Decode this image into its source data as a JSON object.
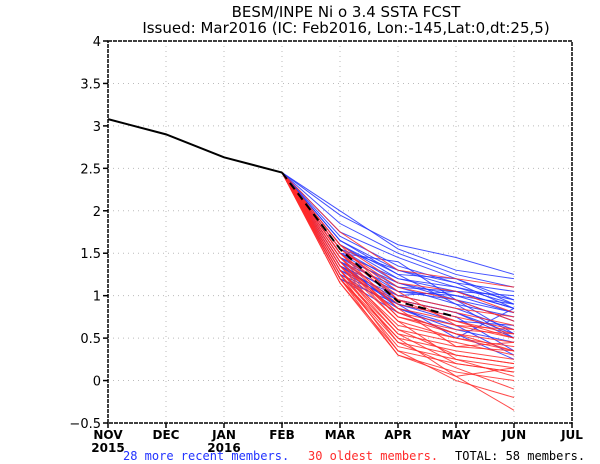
{
  "chart_data": {
    "type": "line",
    "title": "BESM/INPE Ni o 3.4 SSTA FCST",
    "subtitle": "Issued: Mar2016 (IC: Feb2016, Lon:-145,Lat:0,dt:25,5)",
    "xlabel": "",
    "ylabel": "",
    "x_ticks": [
      {
        "label": "NOV",
        "sub": "2015"
      },
      {
        "label": "DEC",
        "sub": ""
      },
      {
        "label": "JAN",
        "sub": "2016"
      },
      {
        "label": "FEB",
        "sub": ""
      },
      {
        "label": "MAR",
        "sub": ""
      },
      {
        "label": "APR",
        "sub": ""
      },
      {
        "label": "MAY",
        "sub": ""
      },
      {
        "label": "JUN",
        "sub": ""
      },
      {
        "label": "JUL",
        "sub": ""
      }
    ],
    "y_ticks": [
      "-0.5",
      "0",
      "0.5",
      "1",
      "1.5",
      "2",
      "2.5",
      "3",
      "3.5",
      "4"
    ],
    "ylim": [
      -0.5,
      4
    ],
    "xlim": [
      0,
      8
    ],
    "grid": true,
    "colors": {
      "recent": "#2233ff",
      "oldest": "#ff2a2a",
      "observed": "#000000",
      "mean": "#000000"
    },
    "observed": {
      "name": "Observed",
      "x": [
        0,
        1,
        2,
        3
      ],
      "values": [
        3.08,
        2.9,
        2.63,
        2.45
      ]
    },
    "ensemble_mean": {
      "name": "Ensemble mean",
      "x": [
        3,
        4,
        5,
        6
      ],
      "values": [
        2.45,
        1.55,
        0.93,
        0.75
      ]
    },
    "forecast_x": [
      3,
      4,
      5,
      6,
      7
    ],
    "recent_members": [
      [
        2.45,
        1.95,
        1.6,
        1.45,
        1.25
      ],
      [
        2.45,
        2.0,
        1.55,
        1.3,
        1.2
      ],
      [
        2.45,
        1.85,
        1.5,
        1.25,
        1.1
      ],
      [
        2.45,
        1.75,
        1.45,
        1.2,
        0.95
      ],
      [
        2.45,
        1.7,
        1.35,
        1.15,
        1.05
      ],
      [
        2.45,
        1.65,
        1.3,
        1.1,
        0.9
      ],
      [
        2.45,
        1.6,
        1.25,
        1.2,
        0.9
      ],
      [
        2.45,
        1.6,
        1.2,
        1.05,
        1.0
      ],
      [
        2.45,
        1.55,
        1.3,
        1.15,
        0.85
      ],
      [
        2.45,
        1.55,
        1.15,
        1.0,
        0.8
      ],
      [
        2.45,
        1.5,
        1.2,
        1.1,
        0.95
      ],
      [
        2.45,
        1.5,
        1.1,
        1.05,
        0.85
      ],
      [
        2.45,
        1.45,
        1.15,
        0.95,
        0.8
      ],
      [
        2.45,
        1.45,
        1.05,
        1.0,
        0.9
      ],
      [
        2.45,
        1.4,
        1.1,
        0.9,
        0.75
      ],
      [
        2.45,
        1.4,
        1.0,
        1.05,
        0.85
      ],
      [
        2.45,
        1.35,
        1.05,
        0.95,
        0.7
      ],
      [
        2.45,
        1.35,
        0.95,
        0.8,
        0.55
      ],
      [
        2.45,
        1.3,
        1.0,
        0.85,
        0.6
      ],
      [
        2.45,
        1.3,
        0.9,
        0.7,
        0.65
      ],
      [
        2.45,
        1.25,
        0.95,
        0.8,
        0.5
      ],
      [
        2.45,
        1.25,
        0.85,
        0.6,
        0.45
      ],
      [
        2.45,
        1.2,
        0.9,
        0.75,
        0.35
      ],
      [
        2.45,
        1.2,
        0.8,
        0.55,
        0.25
      ],
      [
        2.45,
        1.5,
        1.4,
        0.95,
        0.55
      ],
      [
        2.45,
        1.65,
        1.25,
        0.9,
        0.5
      ],
      [
        2.45,
        1.4,
        0.85,
        0.65,
        0.3
      ],
      [
        2.45,
        1.35,
        0.9,
        0.5,
        0.85
      ]
    ],
    "oldest_members": [
      [
        2.45,
        1.75,
        1.3,
        1.2,
        1.1
      ],
      [
        2.45,
        1.6,
        1.15,
        1.05,
        0.8
      ],
      [
        2.45,
        1.55,
        1.1,
        0.95,
        0.7
      ],
      [
        2.45,
        1.5,
        1.0,
        0.85,
        0.75
      ],
      [
        2.45,
        1.5,
        0.95,
        0.8,
        0.65
      ],
      [
        2.45,
        1.45,
        0.9,
        0.75,
        0.6
      ],
      [
        2.45,
        1.45,
        0.85,
        0.7,
        0.55
      ],
      [
        2.45,
        1.4,
        0.8,
        0.65,
        0.5
      ],
      [
        2.45,
        1.4,
        0.75,
        0.6,
        0.55
      ],
      [
        2.45,
        1.35,
        0.8,
        0.55,
        0.45
      ],
      [
        2.45,
        1.35,
        0.7,
        0.5,
        0.4
      ],
      [
        2.45,
        1.3,
        0.65,
        0.5,
        0.35
      ],
      [
        2.45,
        1.3,
        0.6,
        0.45,
        0.3
      ],
      [
        2.45,
        1.25,
        0.55,
        0.4,
        0.35
      ],
      [
        2.45,
        1.25,
        0.5,
        0.35,
        0.25
      ],
      [
        2.45,
        1.2,
        0.45,
        0.3,
        0.2
      ],
      [
        2.45,
        1.2,
        0.4,
        0.25,
        0.15
      ],
      [
        2.45,
        1.15,
        0.35,
        0.2,
        0.1
      ],
      [
        2.45,
        1.15,
        0.3,
        0.1,
        0.0
      ],
      [
        2.45,
        1.2,
        0.5,
        0.05,
        0.15
      ],
      [
        2.45,
        1.3,
        0.45,
        0.15,
        -0.1
      ],
      [
        2.45,
        1.25,
        0.35,
        0.0,
        -0.2
      ],
      [
        2.45,
        1.2,
        0.3,
        0.05,
        -0.35
      ],
      [
        2.45,
        1.4,
        0.7,
        0.25,
        0.05
      ],
      [
        2.45,
        1.35,
        0.6,
        0.3,
        0.2
      ],
      [
        2.45,
        1.5,
        0.85,
        0.4,
        0.45
      ],
      [
        2.45,
        1.45,
        0.75,
        0.55,
        0.35
      ],
      [
        2.45,
        1.55,
        1.05,
        0.65,
        0.6
      ],
      [
        2.45,
        1.6,
        0.95,
        0.7,
        0.5
      ],
      [
        2.45,
        1.3,
        0.55,
        0.2,
        0.1
      ]
    ]
  },
  "footer": {
    "recent_text": "28 more recent members.",
    "oldest_text": "30 oldest members.",
    "total_text": "TOTAL: 58 members."
  }
}
